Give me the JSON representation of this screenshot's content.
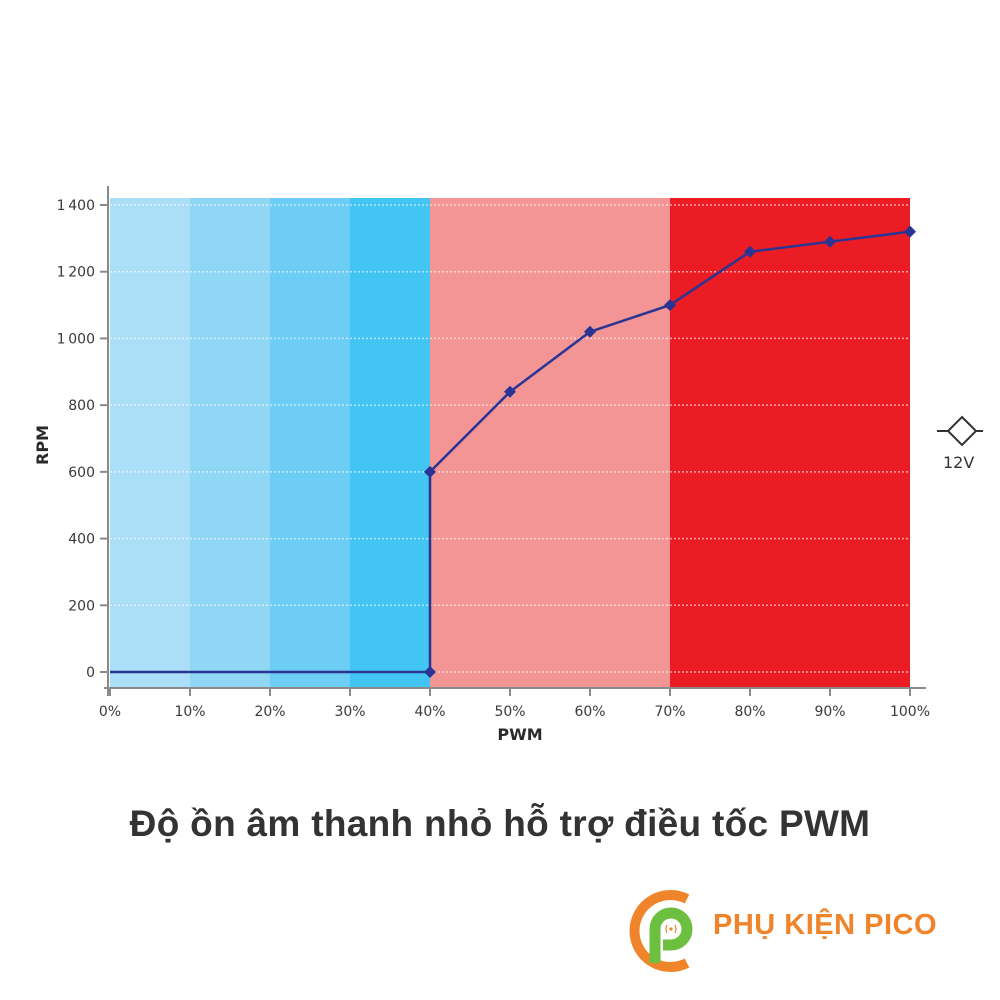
{
  "chart_data": {
    "type": "line",
    "title": "",
    "xlabel": "PWM",
    "ylabel": "RPM",
    "x": [
      "0%",
      "10%",
      "20%",
      "30%",
      "40%",
      "40%",
      "50%",
      "60%",
      "70%",
      "80%",
      "90%",
      "100%"
    ],
    "x_ticks": [
      "0%",
      "10%",
      "20%",
      "30%",
      "40%",
      "50%",
      "60%",
      "70%",
      "80%",
      "90%",
      "100%"
    ],
    "y_ticks": [
      "0",
      "200",
      "400",
      "600",
      "800",
      "1000",
      "1200",
      "1400"
    ],
    "xlim": [
      0,
      100
    ],
    "ylim": [
      0,
      1400
    ],
    "grid": "horizontal dotted",
    "series": [
      {
        "name": "12V",
        "color": "#2a3593",
        "marker": "diamond",
        "points": [
          {
            "x": 0,
            "y": 0,
            "marker": false
          },
          {
            "x": 40,
            "y": 0,
            "marker": true
          },
          {
            "x": 40,
            "y": 600,
            "marker": true
          },
          {
            "x": 50,
            "y": 840,
            "marker": true
          },
          {
            "x": 60,
            "y": 1020,
            "marker": true
          },
          {
            "x": 70,
            "y": 1100,
            "marker": true
          },
          {
            "x": 80,
            "y": 1260,
            "marker": true
          },
          {
            "x": 90,
            "y": 1290,
            "marker": true
          },
          {
            "x": 100,
            "y": 1320,
            "marker": true
          }
        ]
      }
    ],
    "background_bands": [
      {
        "from": 0,
        "to": 10,
        "color": "#abdff8"
      },
      {
        "from": 10,
        "to": 20,
        "color": "#90d7f6"
      },
      {
        "from": 20,
        "to": 30,
        "color": "#6dcdf4"
      },
      {
        "from": 30,
        "to": 40,
        "color": "#42c5f2"
      },
      {
        "from": 40,
        "to": 70,
        "color": "#f49595"
      },
      {
        "from": 70,
        "to": 100,
        "color": "#ec1c24"
      }
    ],
    "legend": {
      "label": "12V",
      "position": "right"
    }
  },
  "caption": "Độ ồn âm thanh nhỏ hỗ trợ điều tốc PWM",
  "brand": {
    "name": "PHỤ KIỆN PICO",
    "primary_color": "#f0842a",
    "secondary_color": "#6cbf3f"
  }
}
